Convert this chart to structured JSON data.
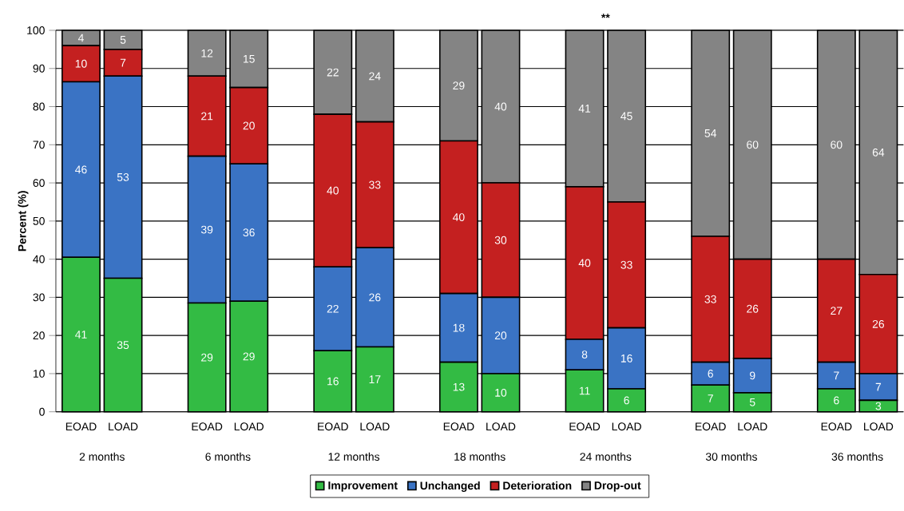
{
  "chart_data": {
    "type": "bar",
    "stacked": true,
    "ylabel": "Percent (%)",
    "ylim": [
      0,
      100
    ],
    "yticks": [
      0,
      10,
      20,
      30,
      40,
      50,
      60,
      70,
      80,
      90,
      100
    ],
    "grid": "y",
    "legend": "bottom",
    "categories": [
      "EOAD",
      "LOAD",
      "EOAD",
      "LOAD",
      "EOAD",
      "LOAD",
      "EOAD",
      "LOAD",
      "EOAD",
      "LOAD",
      "EOAD",
      "LOAD",
      "EOAD",
      "LOAD"
    ],
    "annotations": [
      "2 months",
      "6 months",
      "12 months",
      "18 months",
      "24 months",
      "30 months",
      "36 months",
      "**"
    ],
    "series": [
      {
        "name": "Improvement",
        "color": "#33bb44",
        "values": [
          40.5,
          35,
          28.5,
          29,
          16,
          17,
          13,
          10,
          11,
          6,
          7,
          5,
          6,
          3
        ],
        "value_labels": [
          "41",
          "35",
          "29",
          "29",
          "16",
          "17",
          "13",
          "10",
          "11",
          "6",
          "7",
          "5",
          "6",
          "3"
        ]
      },
      {
        "name": "Unchanged",
        "color": "#3a73c4",
        "values": [
          46,
          53,
          38.5,
          36,
          22,
          26,
          18,
          20,
          8,
          16,
          6,
          9,
          7,
          7
        ],
        "value_labels": [
          "46",
          "53",
          "39",
          "36",
          "22",
          "26",
          "18",
          "20",
          "8",
          "16",
          "6",
          "9",
          "7",
          "7"
        ]
      },
      {
        "name": "Deterioration",
        "color": "#c42020",
        "values": [
          9.5,
          7,
          21,
          20,
          40,
          33,
          40,
          30,
          40,
          33,
          33,
          26,
          27,
          26
        ],
        "value_labels": [
          "10",
          "7",
          "21",
          "20",
          "40",
          "33",
          "40",
          "30",
          "40",
          "33",
          "33",
          "26",
          "27",
          "26"
        ]
      },
      {
        "name": "Drop-out",
        "color": "#848484",
        "values": [
          4,
          5,
          12,
          15,
          22,
          24,
          29,
          40,
          41,
          45,
          54,
          60,
          60,
          64
        ],
        "value_labels": [
          "4",
          "5",
          "12",
          "15",
          "22",
          "24",
          "29",
          "40",
          "41",
          "45",
          "54",
          "60",
          "60",
          "64"
        ]
      }
    ]
  }
}
